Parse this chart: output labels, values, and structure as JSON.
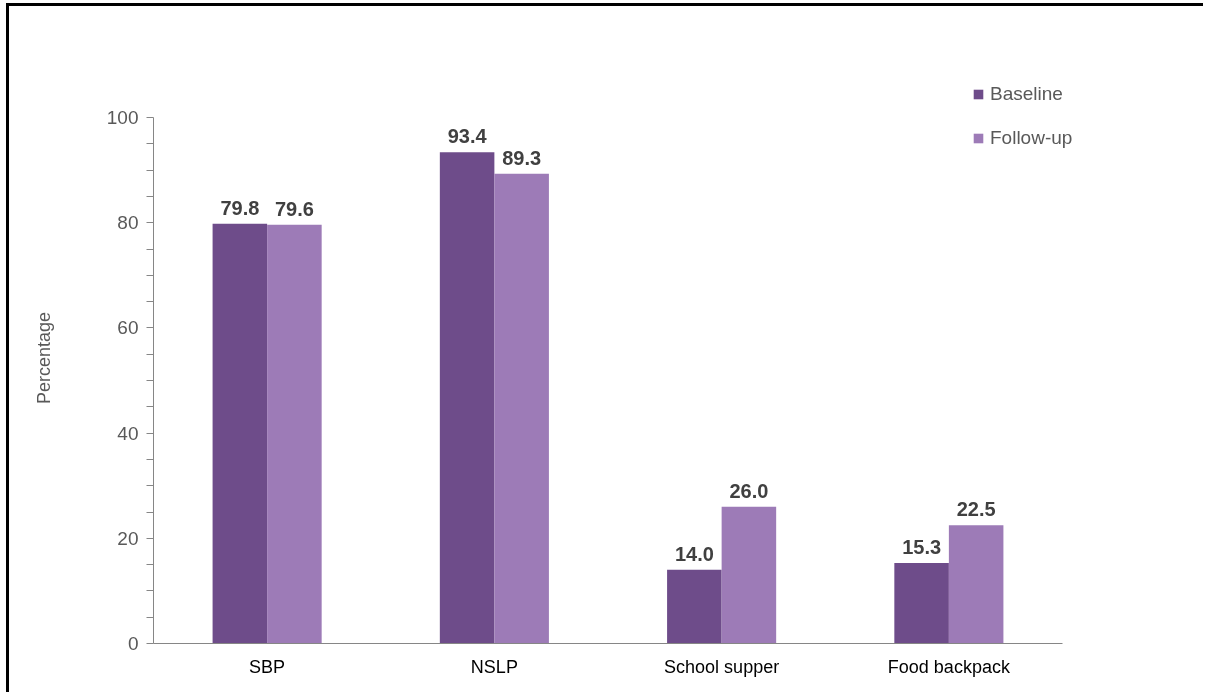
{
  "chart_data": {
    "type": "bar",
    "ylabel": "Percentage",
    "categories": [
      "SBP",
      "NSLP",
      "School supper",
      "Food backpack"
    ],
    "series": [
      {
        "name": "Baseline",
        "color": "#6e4c8a",
        "values": [
          79.8,
          93.4,
          14.0,
          15.3
        ],
        "value_labels": [
          "79.8",
          "93.4",
          "14.0",
          "15.3"
        ]
      },
      {
        "name": "Follow-up",
        "color": "#9d7bb7",
        "values": [
          79.6,
          89.3,
          26.0,
          22.5
        ],
        "value_labels": [
          "79.6",
          "89.3",
          "26.0",
          "22.5"
        ]
      }
    ],
    "ylim": [
      0,
      100
    ],
    "yticks": [
      0,
      {
        "value": 5,
        "label": null
      },
      {
        "value": 10,
        "label": null
      },
      {
        "value": 15,
        "label": null
      },
      20,
      {
        "value": 25,
        "label": null
      },
      {
        "value": 30,
        "label": null
      },
      {
        "value": 35,
        "label": null
      },
      40,
      {
        "value": 45,
        "label": null
      },
      {
        "value": 50,
        "label": null
      },
      {
        "value": 55,
        "label": null
      },
      60,
      {
        "value": 65,
        "label": null
      },
      {
        "value": 70,
        "label": null
      },
      {
        "value": 75,
        "label": null
      },
      80,
      {
        "value": 85,
        "label": null
      },
      {
        "value": 90,
        "label": null
      },
      {
        "value": 95,
        "label": null
      },
      100
    ],
    "legend": "top right"
  }
}
